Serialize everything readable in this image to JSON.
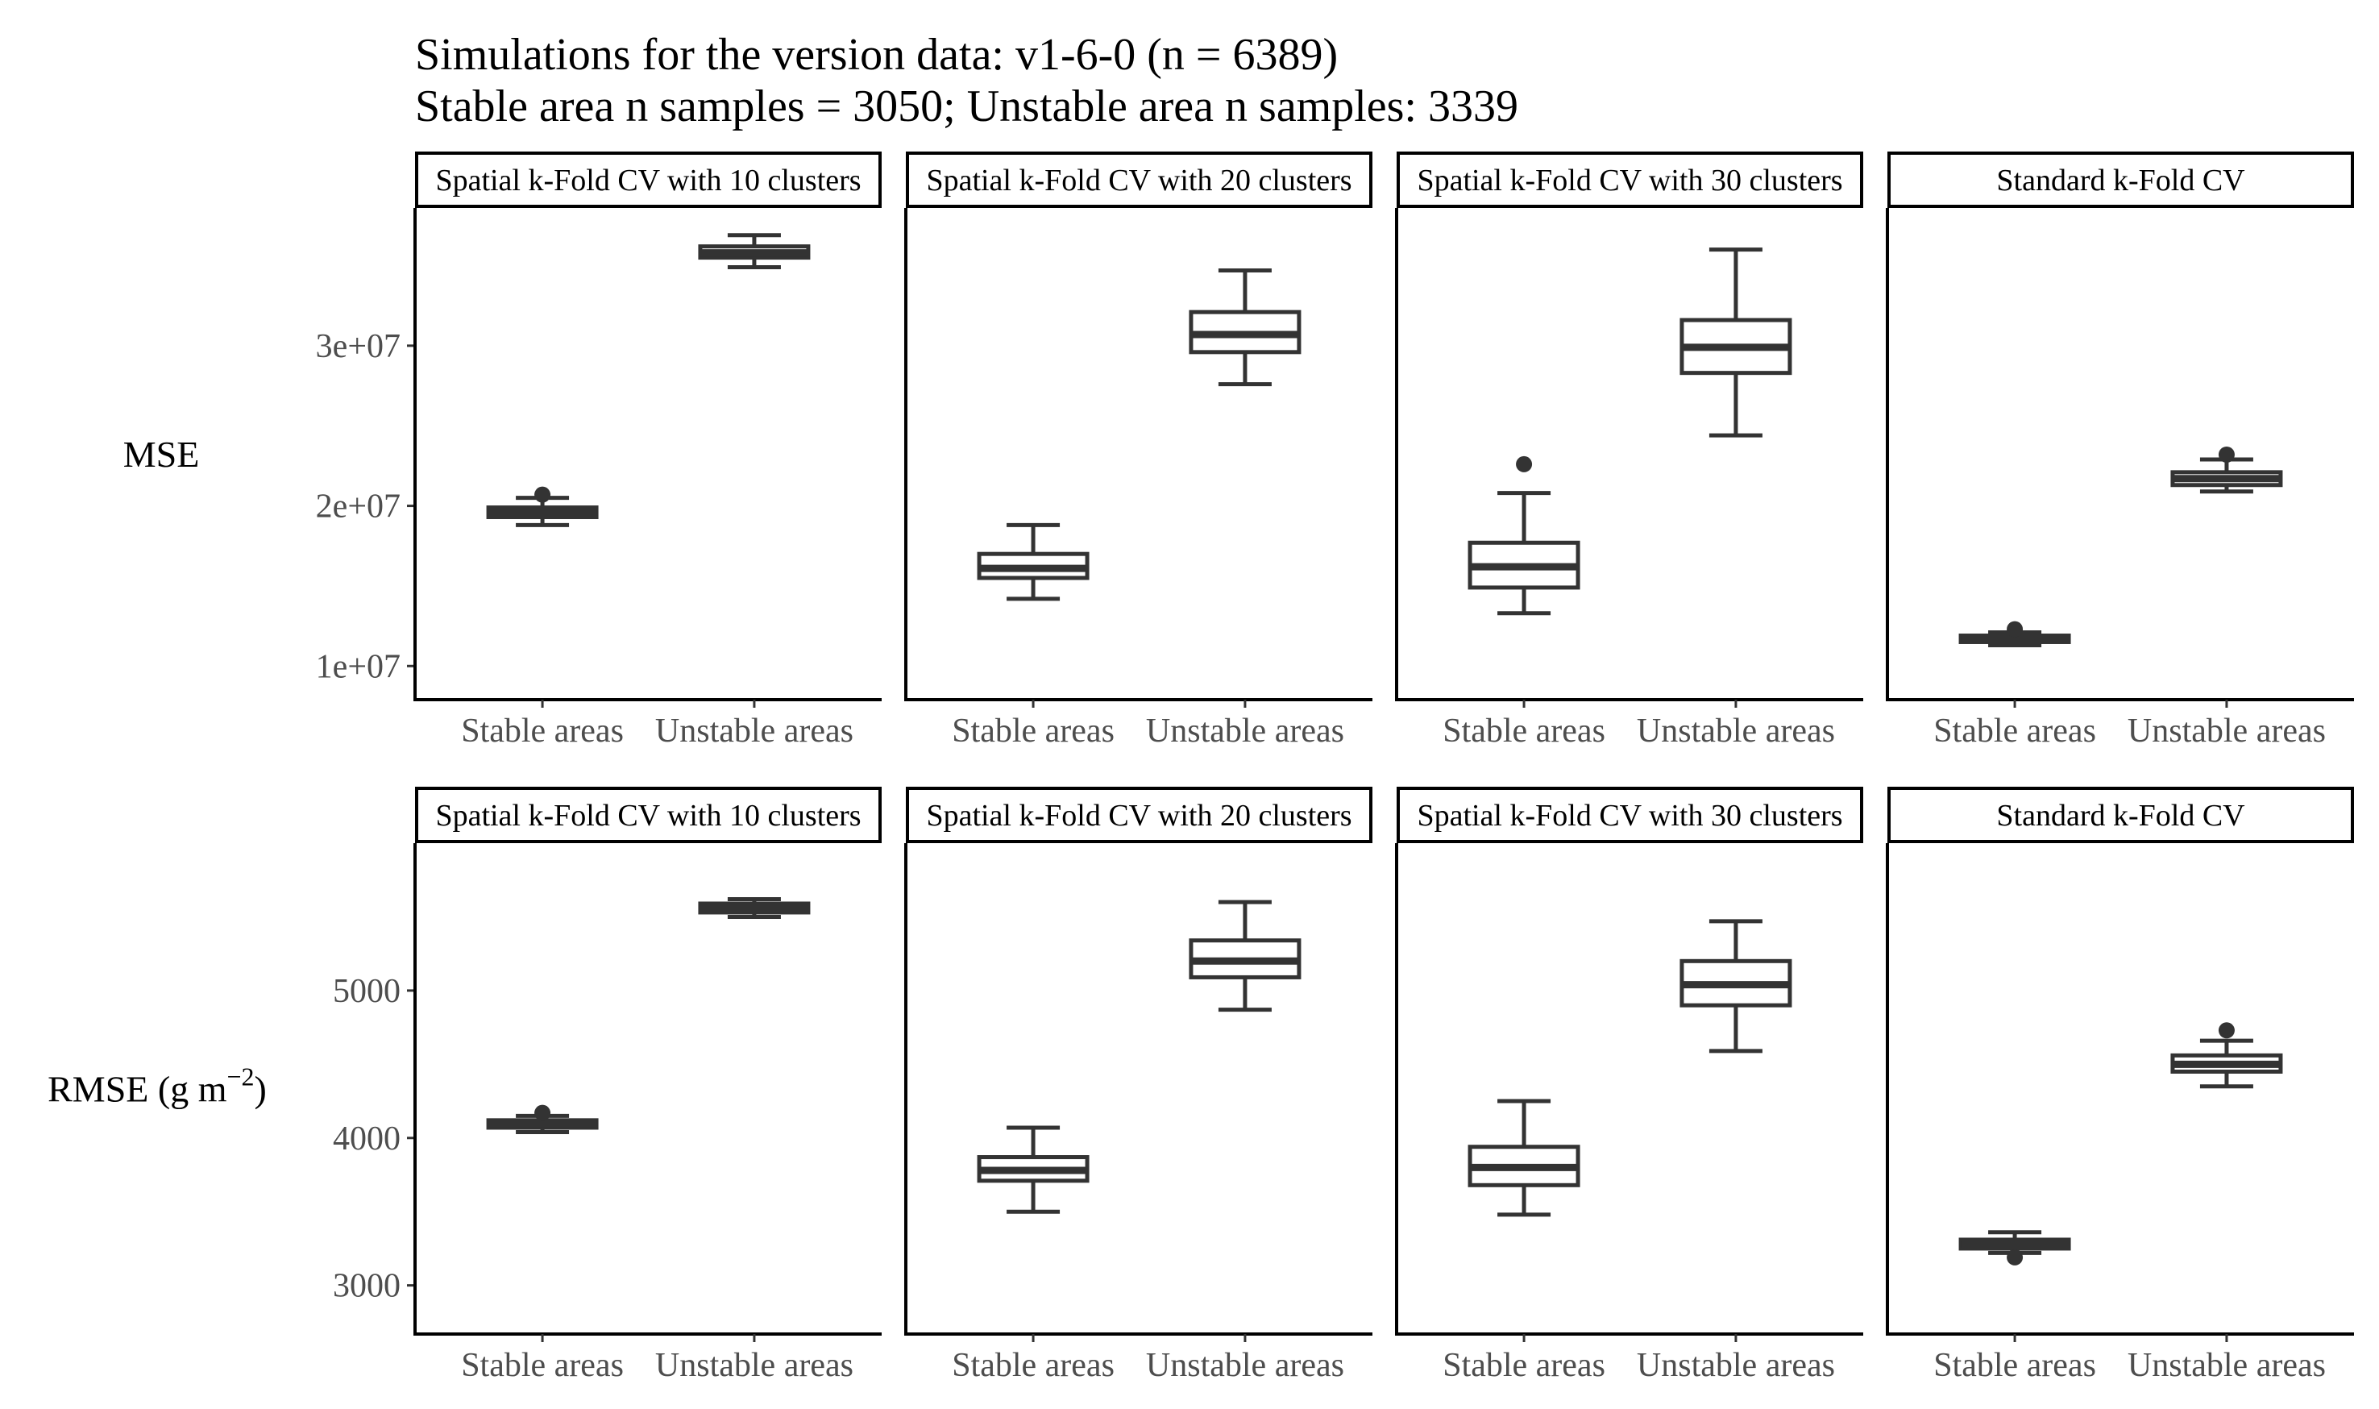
{
  "title": {
    "line1": "Simulations for the version data: v1-6-0 (n = 6389)",
    "line2": "Stable area n samples = 3050; Unstable area n samples: 3339"
  },
  "chart_data": [
    {
      "type": "box",
      "metric": "MSE",
      "ylabel": "MSE",
      "ylim": [
        7900000,
        38600000
      ],
      "yticks": [
        10000000,
        20000000,
        30000000
      ],
      "ytick_labels": [
        "1e+07",
        "2e+07",
        "3e+07"
      ],
      "categories": [
        "Stable areas",
        "Unstable areas"
      ],
      "panels": [
        {
          "facet": "Spatial k-Fold CV with 10 clusters",
          "boxes": [
            {
              "category": "Stable areas",
              "min": 18800000,
              "q1": 19300000,
              "median": 19600000,
              "q3": 19900000,
              "max": 20500000,
              "outliers": [
                20700000
              ]
            },
            {
              "category": "Unstable areas",
              "min": 34900000,
              "q1": 35500000,
              "median": 35800000,
              "q3": 36200000,
              "max": 36900000,
              "outliers": []
            }
          ]
        },
        {
          "facet": "Spatial k-Fold CV with 20 clusters",
          "boxes": [
            {
              "category": "Stable areas",
              "min": 14200000,
              "q1": 15500000,
              "median": 16100000,
              "q3": 17000000,
              "max": 18800000,
              "outliers": []
            },
            {
              "category": "Unstable areas",
              "min": 27600000,
              "q1": 29600000,
              "median": 30700000,
              "q3": 32100000,
              "max": 34700000,
              "outliers": []
            }
          ]
        },
        {
          "facet": "Spatial k-Fold CV with 30 clusters",
          "boxes": [
            {
              "category": "Stable areas",
              "min": 13300000,
              "q1": 14900000,
              "median": 16200000,
              "q3": 17700000,
              "max": 20800000,
              "outliers": [
                22600000
              ]
            },
            {
              "category": "Unstable areas",
              "min": 24400000,
              "q1": 28300000,
              "median": 29900000,
              "q3": 31600000,
              "max": 36000000,
              "outliers": []
            }
          ]
        },
        {
          "facet": "Standard k-Fold CV",
          "boxes": [
            {
              "category": "Stable areas",
              "min": 11300000,
              "q1": 11500000,
              "median": 11700000,
              "q3": 11900000,
              "max": 12100000,
              "outliers": [
                12300000
              ]
            },
            {
              "category": "Unstable areas",
              "min": 20900000,
              "q1": 21300000,
              "median": 21700000,
              "q3": 22100000,
              "max": 22900000,
              "outliers": [
                23200000
              ]
            }
          ]
        }
      ]
    },
    {
      "type": "box",
      "metric": "RMSE",
      "ylabel": "RMSE (g m",
      "ylabel_sup": "−2",
      "ylabel_close": ")",
      "ylim": [
        2670,
        6000
      ],
      "yticks": [
        3000,
        4000,
        5000
      ],
      "ytick_labels": [
        "3000",
        "4000",
        "5000"
      ],
      "categories": [
        "Stable areas",
        "Unstable areas"
      ],
      "panels": [
        {
          "facet": "Spatial k-Fold CV with 10 clusters",
          "boxes": [
            {
              "category": "Stable areas",
              "min": 4040,
              "q1": 4070,
              "median": 4095,
              "q3": 4120,
              "max": 4150,
              "outliers": [
                4170
              ]
            },
            {
              "category": "Unstable areas",
              "min": 5500,
              "q1": 5530,
              "median": 5560,
              "q3": 5590,
              "max": 5620,
              "outliers": []
            }
          ]
        },
        {
          "facet": "Spatial k-Fold CV with 20 clusters",
          "boxes": [
            {
              "category": "Stable areas",
              "min": 3500,
              "q1": 3710,
              "median": 3780,
              "q3": 3870,
              "max": 4070,
              "outliers": []
            },
            {
              "category": "Unstable areas",
              "min": 4870,
              "q1": 5090,
              "median": 5200,
              "q3": 5340,
              "max": 5600,
              "outliers": []
            }
          ]
        },
        {
          "facet": "Spatial k-Fold CV with 30 clusters",
          "boxes": [
            {
              "category": "Stable areas",
              "min": 3480,
              "q1": 3680,
              "median": 3800,
              "q3": 3940,
              "max": 4250,
              "outliers": []
            },
            {
              "category": "Unstable areas",
              "min": 4590,
              "q1": 4900,
              "median": 5040,
              "q3": 5200,
              "max": 5470,
              "outliers": []
            }
          ]
        },
        {
          "facet": "Standard k-Fold CV",
          "boxes": [
            {
              "category": "Stable areas",
              "min": 3220,
              "q1": 3250,
              "median": 3280,
              "q3": 3310,
              "max": 3360,
              "outliers": [
                3190
              ]
            },
            {
              "category": "Unstable areas",
              "min": 4350,
              "q1": 4450,
              "median": 4500,
              "q3": 4560,
              "max": 4660,
              "outliers": [
                4730
              ]
            }
          ]
        }
      ]
    }
  ]
}
